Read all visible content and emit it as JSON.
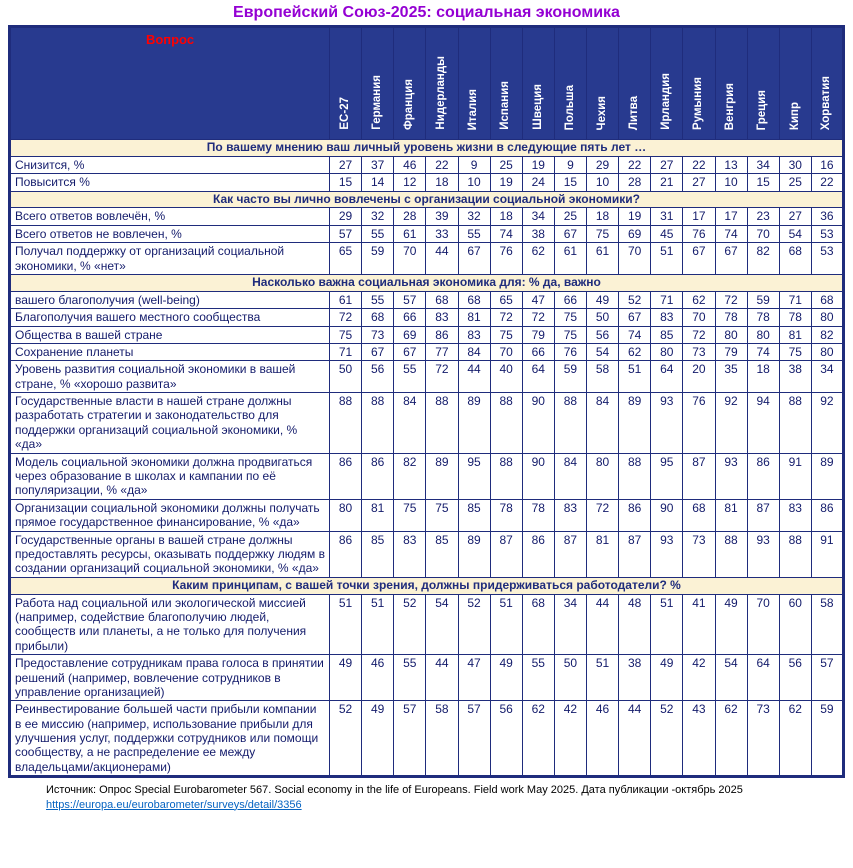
{
  "title": "Европейский Союз-2025: социальная экономика",
  "table": {
    "question_header": "Вопрос",
    "countries": [
      "ЕС-27",
      "Германия",
      "Франция",
      "Нидерланды",
      "Италия",
      "Испания",
      "Швеция",
      "Польша",
      "Чехия",
      "Литва",
      "Ирландия",
      "Румыния",
      "Венгрия",
      "Греция",
      "Кипр",
      "Хорватия"
    ],
    "sections": [
      {
        "title": "По вашему мнению ваш личный уровень жизни в следующие пять лет …",
        "rows": [
          {
            "label": "Снизится, %",
            "values": [
              27,
              37,
              46,
              22,
              9,
              25,
              19,
              9,
              29,
              22,
              27,
              22,
              13,
              34,
              30,
              16
            ]
          },
          {
            "label": "Повысится %",
            "values": [
              15,
              14,
              12,
              18,
              10,
              19,
              24,
              15,
              10,
              28,
              21,
              27,
              10,
              15,
              25,
              22
            ]
          }
        ]
      },
      {
        "title": "Как часто вы лично вовлечены с организации социальной экономики?",
        "rows": [
          {
            "label": "Всего ответов вовлечён, %",
            "values": [
              29,
              32,
              28,
              39,
              32,
              18,
              34,
              25,
              18,
              19,
              31,
              17,
              17,
              23,
              27,
              36
            ]
          },
          {
            "label": "Всего ответов не вовлечен, %",
            "values": [
              57,
              55,
              61,
              33,
              55,
              74,
              38,
              67,
              75,
              69,
              45,
              76,
              74,
              70,
              54,
              53
            ]
          },
          {
            "label": "Получал поддержку от организаций социальной экономики, % «нет»",
            "values": [
              65,
              59,
              70,
              44,
              67,
              76,
              62,
              61,
              61,
              70,
              51,
              67,
              67,
              82,
              68,
              53
            ]
          }
        ]
      },
      {
        "title": "Насколько важна социальная экономика для: % да, важно",
        "rows": [
          {
            "label": "вашего благополучия (well-being)",
            "values": [
              61,
              55,
              57,
              68,
              68,
              65,
              47,
              66,
              49,
              52,
              71,
              62,
              72,
              59,
              71,
              68
            ]
          },
          {
            "label": "Благополучия вашего местного сообщества",
            "values": [
              72,
              68,
              66,
              83,
              81,
              72,
              72,
              75,
              50,
              67,
              83,
              70,
              78,
              78,
              78,
              80
            ]
          },
          {
            "label": "Общества в вашей стране",
            "values": [
              75,
              73,
              69,
              86,
              83,
              75,
              79,
              75,
              56,
              74,
              85,
              72,
              80,
              80,
              81,
              82
            ]
          },
          {
            "label": "Сохранение планеты",
            "values": [
              71,
              67,
              67,
              77,
              84,
              70,
              66,
              76,
              54,
              62,
              80,
              73,
              79,
              74,
              75,
              80
            ]
          },
          {
            "label": "Уровень развития социальной экономики в вашей стране, % «хорошо развита»",
            "values": [
              50,
              56,
              55,
              72,
              44,
              40,
              64,
              59,
              58,
              51,
              64,
              20,
              35,
              18,
              38,
              34
            ]
          },
          {
            "label": "Государственные власти в нашей стране должны разработать стратегии и законодательство для поддержки организаций социальной экономики, % «да»",
            "values": [
              88,
              88,
              84,
              88,
              89,
              88,
              90,
              88,
              84,
              89,
              93,
              76,
              92,
              94,
              88,
              92
            ]
          },
          {
            "label": "Модель социальной экономики должна продвигаться через образование в школах и кампании по её популяризации, % «да»",
            "values": [
              86,
              86,
              82,
              89,
              95,
              88,
              90,
              84,
              80,
              88,
              95,
              87,
              93,
              86,
              91,
              89
            ]
          },
          {
            "label": "Организации социальной экономики должны получать прямое государственное финансирование, % «да»",
            "values": [
              80,
              81,
              75,
              75,
              85,
              78,
              78,
              83,
              72,
              86,
              90,
              68,
              81,
              87,
              83,
              86
            ]
          },
          {
            "label": "Государственные органы в вашей стране должны предоставлять ресурсы, оказывать поддержку людям в создании организаций социальной экономики, % «да»",
            "values": [
              86,
              85,
              83,
              85,
              89,
              87,
              86,
              87,
              81,
              87,
              93,
              73,
              88,
              93,
              88,
              91
            ]
          }
        ]
      },
      {
        "title": "Каким принципам, с вашей точки зрения, должны придерживаться работодатели? %",
        "rows": [
          {
            "label": "Работа над социальной или экологической миссией (например, содействие благополучию людей, сообществ или планеты, а не только для получения прибыли)",
            "values": [
              51,
              51,
              52,
              54,
              52,
              51,
              68,
              34,
              44,
              48,
              51,
              41,
              49,
              70,
              60,
              58
            ]
          },
          {
            "label": "Предоставление сотрудникам права голоса в принятии решений (например, вовлечение сотрудников в управление организацией)",
            "values": [
              49,
              46,
              55,
              44,
              47,
              49,
              55,
              50,
              51,
              38,
              49,
              42,
              54,
              64,
              56,
              57
            ]
          },
          {
            "label": "Реинвестирование большей части прибыли компании в ее миссию (например, использование прибыли для улучшения услуг, поддержки сотрудников или помощи сообществу, а не распределение ее между владельцами/акционерами)",
            "values": [
              52,
              49,
              57,
              58,
              57,
              56,
              62,
              42,
              46,
              44,
              52,
              43,
              62,
              73,
              62,
              59
            ]
          }
        ]
      }
    ]
  },
  "footer": {
    "source": "Источник: Опрос Special Eurobarometer 567. Social economy in the life of Europeans. Field work May 2025. Дата публикации -октябрь 2025",
    "link": "https://europa.eu/eurobarometer/surveys/detail/3356"
  },
  "colors": {
    "header_bg": "#283A8F",
    "section_bg": "#FBF2D5",
    "text_navy": "#131B6B",
    "question_red": "#FF0000",
    "title_purple": "#9400D3",
    "link_blue": "#0563C1"
  }
}
